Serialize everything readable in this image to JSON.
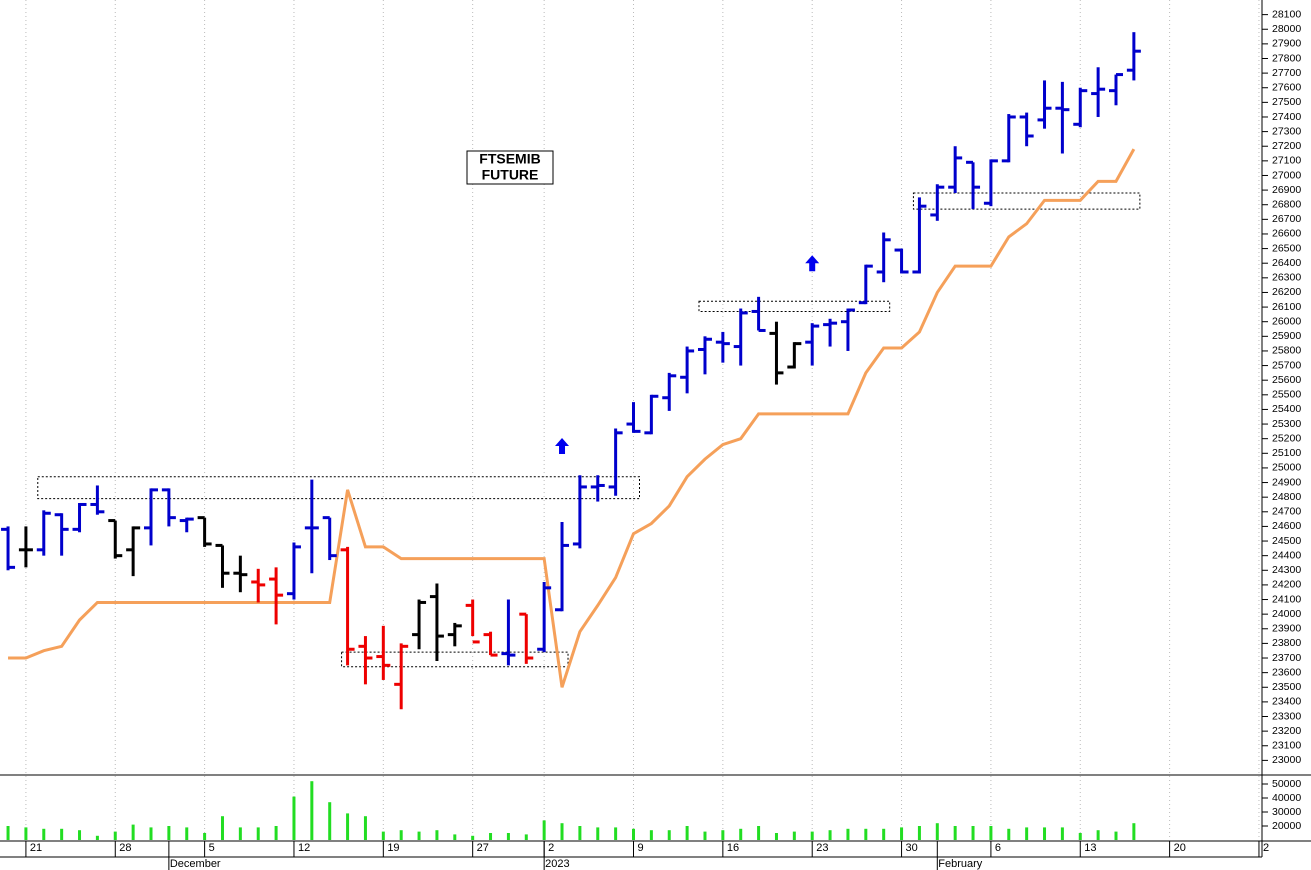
{
  "chart_data": {
    "type": "ohlc",
    "title": [
      "FTSEMIB",
      "FUTURE"
    ],
    "x": [
      0,
      1,
      2,
      3,
      4,
      5,
      6,
      7,
      8,
      9,
      10,
      11,
      12,
      13,
      14,
      15,
      16,
      17,
      18,
      19,
      20,
      21,
      22,
      23,
      24,
      25,
      26,
      27,
      28,
      29,
      30,
      31,
      32,
      33,
      34,
      35,
      36,
      37,
      38,
      39,
      40,
      41,
      42,
      43,
      44,
      45,
      46,
      47,
      48,
      49,
      50,
      51,
      52,
      53,
      54,
      55,
      56,
      57,
      58,
      59,
      60,
      61,
      62,
      63
    ],
    "open": [
      24580,
      24440,
      24440,
      24680,
      24580,
      24750,
      24640,
      24440,
      24590,
      24850,
      24640,
      24660,
      24470,
      24280,
      24220,
      24240,
      24140,
      24590,
      24660,
      24440,
      23780,
      23710,
      23520,
      23860,
      24120,
      23860,
      24060,
      23860,
      23730,
      24000,
      23760,
      24030,
      24480,
      24870,
      24870,
      25300,
      25240,
      25480,
      25620,
      25810,
      25860,
      25830,
      26070,
      25920,
      25690,
      25860,
      25980,
      26000,
      26130,
      26340,
      26490,
      26340,
      26730,
      26920,
      27090,
      26810,
      27100,
      27400,
      27380,
      27460,
      27350,
      27560,
      27580,
      27720
    ],
    "high": [
      24600,
      24600,
      24710,
      24690,
      24760,
      24880,
      24640,
      24600,
      24860,
      24860,
      24660,
      24660,
      24470,
      24400,
      24310,
      24320,
      24490,
      24920,
      24660,
      24460,
      23850,
      23920,
      23800,
      24100,
      24210,
      23940,
      24100,
      23880,
      24100,
      24000,
      24220,
      24630,
      24950,
      24950,
      25270,
      25450,
      25500,
      25650,
      25830,
      25900,
      25930,
      26090,
      26170,
      26000,
      25860,
      25990,
      26020,
      26090,
      26390,
      26610,
      26500,
      26850,
      26940,
      27200,
      27090,
      27110,
      27420,
      27430,
      27650,
      27640,
      27600,
      27740,
      27690,
      27980
    ],
    "low": [
      24300,
      24320,
      24400,
      24400,
      24560,
      24680,
      24380,
      24260,
      24470,
      24600,
      24560,
      24460,
      24180,
      24150,
      24080,
      23930,
      24100,
      24280,
      24370,
      23650,
      23520,
      23550,
      23350,
      23760,
      23680,
      23780,
      23850,
      23720,
      23650,
      23660,
      23740,
      24020,
      24450,
      24770,
      24810,
      25240,
      25230,
      25390,
      25510,
      25640,
      25720,
      25700,
      25940,
      25570,
      25680,
      25700,
      25830,
      25800,
      26120,
      26270,
      26330,
      26330,
      26690,
      26880,
      26770,
      26790,
      27090,
      27200,
      27320,
      27150,
      27330,
      27400,
      27480,
      27650
    ],
    "close": [
      24320,
      24440,
      24690,
      24580,
      24750,
      24700,
      24400,
      24590,
      24850,
      24660,
      24650,
      24480,
      24280,
      24270,
      24200,
      24130,
      24460,
      24590,
      24400,
      23760,
      23700,
      23650,
      23780,
      24080,
      23850,
      23920,
      23810,
      23720,
      23720,
      23700,
      24180,
      24470,
      24870,
      24880,
      25240,
      25250,
      25490,
      25630,
      25800,
      25880,
      25850,
      26060,
      25940,
      25650,
      25850,
      25970,
      25990,
      26080,
      26380,
      26560,
      26340,
      26790,
      26920,
      27120,
      26920,
      27100,
      27400,
      27270,
      27460,
      27450,
      27580,
      27590,
      27690,
      27850
    ],
    "bar_colors": [
      "#0000cc",
      "#000000",
      "#0000cc",
      "#0000cc",
      "#0000cc",
      "#0000cc",
      "#000000",
      "#000000",
      "#0000cc",
      "#0000cc",
      "#0000cc",
      "#000000",
      "#000000",
      "#000000",
      "#ee0000",
      "#ee0000",
      "#0000cc",
      "#0000cc",
      "#0000cc",
      "#ee0000",
      "#ee0000",
      "#ee0000",
      "#ee0000",
      "#000000",
      "#000000",
      "#000000",
      "#ee0000",
      "#ee0000",
      "#0000cc",
      "#ee0000",
      "#0000cc",
      "#0000cc",
      "#0000cc",
      "#0000cc",
      "#0000cc",
      "#0000cc",
      "#0000cc",
      "#0000cc",
      "#0000cc",
      "#0000cc",
      "#0000cc",
      "#0000cc",
      "#0000cc",
      "#000000",
      "#000000",
      "#0000cc",
      "#0000cc",
      "#0000cc",
      "#0000cc",
      "#0000cc",
      "#0000cc",
      "#0000cc",
      "#0000cc",
      "#0000cc",
      "#0000cc",
      "#0000cc",
      "#0000cc",
      "#0000cc",
      "#0000cc",
      "#0000cc",
      "#0000cc",
      "#0000cc",
      "#0000cc",
      "#0000cc"
    ],
    "stop_line": {
      "color": "#f5a05a",
      "values": [
        23700,
        23700,
        23750,
        23780,
        23960,
        24080,
        24080,
        24080,
        24080,
        24080,
        24080,
        24080,
        24080,
        24080,
        24080,
        24080,
        24080,
        24080,
        24080,
        24850,
        24460,
        24460,
        24380,
        24380,
        24380,
        24380,
        24380,
        24380,
        24380,
        24380,
        24380,
        23500,
        23880,
        24060,
        24250,
        24550,
        24620,
        24740,
        24940,
        25060,
        25160,
        25200,
        25370,
        25370,
        25370,
        25370,
        25370,
        25370,
        25650,
        25820,
        25820,
        25930,
        26200,
        26380,
        26380,
        26380,
        26580,
        26670,
        26830,
        26830,
        26830,
        26960,
        26960,
        27180
      ]
    },
    "zones": [
      {
        "x": [
          2,
          35
        ],
        "y": [
          24790,
          24940
        ]
      },
      {
        "x": [
          19,
          31
        ],
        "y": [
          23640,
          23740
        ]
      },
      {
        "x": [
          39,
          49
        ],
        "y": [
          26070,
          26140
        ]
      },
      {
        "x": [
          51,
          63
        ],
        "y": [
          26770,
          26880
        ]
      }
    ],
    "arrows": {
      "color": "#0000ee",
      "x": [
        31,
        45
      ],
      "y": [
        25150,
        26400
      ]
    },
    "xlim": [
      -0.45,
      70.17
    ],
    "ylim": [
      22900,
      28200
    ],
    "yticks": [
      23000,
      23100,
      23200,
      23300,
      23400,
      23500,
      23600,
      23700,
      23800,
      23900,
      24000,
      24100,
      24200,
      24300,
      24400,
      24500,
      24600,
      24700,
      24800,
      24900,
      25000,
      25100,
      25200,
      25300,
      25400,
      25500,
      25600,
      25700,
      25800,
      25900,
      26000,
      26100,
      26200,
      26300,
      26400,
      26500,
      26600,
      26700,
      26800,
      26900,
      27000,
      27100,
      27200,
      27300,
      27400,
      27500,
      27600,
      27700,
      27800,
      27900,
      28000,
      28100
    ],
    "xticks": [
      {
        "value": 1,
        "label": "21"
      },
      {
        "value": 6,
        "label": "28"
      },
      {
        "value": 11,
        "label": "5"
      },
      {
        "value": 16,
        "label": "12"
      },
      {
        "value": 21,
        "label": "19"
      },
      {
        "value": 26,
        "label": "27"
      },
      {
        "value": 30,
        "label": "2"
      },
      {
        "value": 35,
        "label": "9"
      },
      {
        "value": 40,
        "label": "16"
      },
      {
        "value": 45,
        "label": "23"
      },
      {
        "value": 50,
        "label": "30"
      },
      {
        "value": 55,
        "label": "6"
      },
      {
        "value": 60,
        "label": "13"
      },
      {
        "value": 65,
        "label": "20"
      },
      {
        "value": 70,
        "label": "2"
      }
    ],
    "month_ticks": [
      {
        "value": 9,
        "label": "December"
      },
      {
        "value": 30,
        "label": "2023"
      },
      {
        "value": 52,
        "label": "February"
      }
    ],
    "volume": {
      "color": "#22dd22",
      "ylim": [
        10000,
        55000
      ],
      "yticks": [
        20000,
        30000,
        40000,
        50000
      ],
      "values": [
        20000,
        19000,
        18000,
        18000,
        17000,
        13000,
        16000,
        21000,
        19000,
        20000,
        19000,
        15000,
        27000,
        19000,
        19000,
        20000,
        41000,
        52000,
        37000,
        29000,
        27000,
        16000,
        17000,
        16000,
        17000,
        14000,
        13000,
        15000,
        15000,
        14000,
        24000,
        22000,
        20000,
        19000,
        19000,
        18000,
        17000,
        17000,
        20000,
        16000,
        17000,
        18000,
        20000,
        15000,
        16000,
        16000,
        17000,
        18000,
        18000,
        18000,
        19000,
        20000,
        22000,
        20000,
        20000,
        20000,
        18000,
        19000,
        19000,
        19000,
        15000,
        17000,
        16000,
        22000
      ]
    },
    "grid": true
  }
}
